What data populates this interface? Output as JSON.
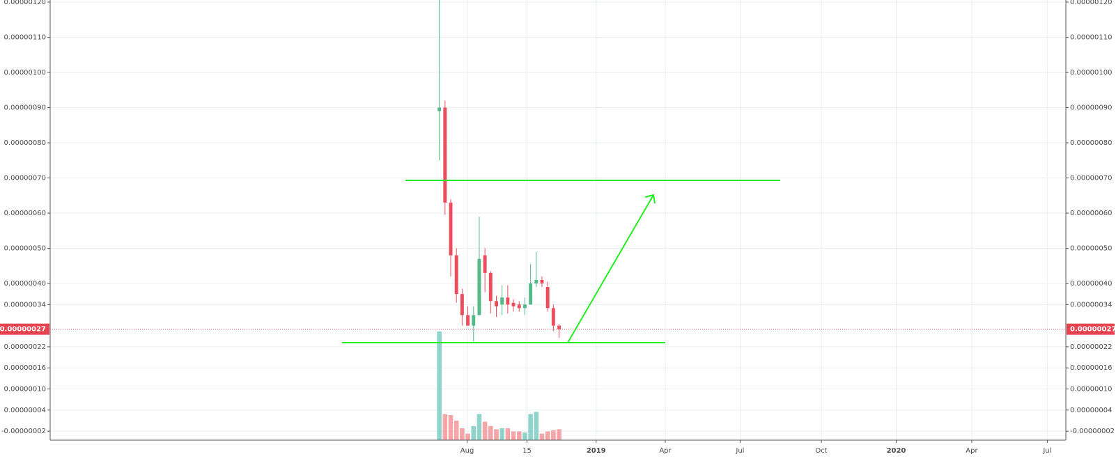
{
  "chart_data": {
    "type": "candlestick",
    "x": [
      0,
      1,
      2,
      3,
      4,
      5,
      6,
      7,
      8,
      9,
      10,
      11,
      12,
      13,
      14,
      15,
      16,
      17,
      18,
      19,
      20,
      21
    ],
    "open": [
      8.9e-07,
      9e-07,
      6.3e-07,
      4.8e-07,
      3.7e-07,
      3.1e-07,
      2.8e-07,
      3.1e-07,
      4.8e-07,
      4.3e-07,
      3.5e-07,
      3.4e-07,
      3.6e-07,
      3.45e-07,
      3.4e-07,
      3.3e-07,
      3.4e-07,
      4e-07,
      4.1e-07,
      3.9e-07,
      3.3e-07,
      2.8e-07
    ],
    "high": [
      1.22e-06,
      9.2e-07,
      6.4e-07,
      5e-07,
      3.85e-07,
      3.35e-07,
      3.35e-07,
      5.9e-07,
      5e-07,
      4.35e-07,
      3.65e-07,
      3.95e-07,
      3.95e-07,
      3.55e-07,
      3.5e-07,
      3.6e-07,
      4.55e-07,
      4.9e-07,
      4.2e-07,
      4.05e-07,
      3.4e-07,
      2.85e-07
    ],
    "low": [
      7.5e-07,
      5.95e-07,
      4.2e-07,
      3.45e-07,
      2.8e-07,
      2.8e-07,
      2.35e-07,
      3.1e-07,
      3.75e-07,
      3.15e-07,
      3.05e-07,
      3.1e-07,
      3.15e-07,
      3.2e-07,
      3.2e-07,
      3.1e-07,
      3.4e-07,
      3.9e-07,
      3.9e-07,
      3.2e-07,
      2.65e-07,
      2.45e-07
    ],
    "close": [
      9e-07,
      6.3e-07,
      4.8e-07,
      3.7e-07,
      3.1e-07,
      2.8e-07,
      3.1e-07,
      4.7e-07,
      4.3e-07,
      3.5e-07,
      3.35e-07,
      3.6e-07,
      3.4e-07,
      3.35e-07,
      3.3e-07,
      3.4e-07,
      4e-07,
      4.1e-07,
      4e-07,
      3.3e-07,
      2.8e-07,
      2.7e-07
    ],
    "volume": [
      100,
      24,
      23,
      18,
      11,
      6,
      13,
      24,
      17,
      13,
      10,
      11,
      11,
      8,
      8,
      7,
      24,
      26,
      6,
      8,
      9,
      10
    ],
    "up_color": "#53b987",
    "down_color": "#eb4d5c",
    "volume_up_color": "#8fd3ca",
    "volume_down_color": "#f4a5a7",
    "ylim": [
      -4.55e-08,
      1.206e-06
    ],
    "yticks": [
      {
        "value": 1.2e-06,
        "label": "0.00000120"
      },
      {
        "value": 1.1e-06,
        "label": "0.00000110"
      },
      {
        "value": 1e-06,
        "label": "0.00000100"
      },
      {
        "value": 9e-07,
        "label": "0.00000090"
      },
      {
        "value": 8e-07,
        "label": "0.00000080"
      },
      {
        "value": 7e-07,
        "label": "0.00000070"
      },
      {
        "value": 6e-07,
        "label": "0.00000060"
      },
      {
        "value": 5e-07,
        "label": "0.00000050"
      },
      {
        "value": 4e-07,
        "label": "0.00000040"
      },
      {
        "value": 3.4e-07,
        "label": "0.00000034"
      },
      {
        "value": 2.2e-07,
        "label": "0.00000022"
      },
      {
        "value": 1.6e-07,
        "label": "0.00000016"
      },
      {
        "value": 1e-07,
        "label": "0.00000010"
      },
      {
        "value": 4e-08,
        "label": "0.00000004"
      },
      {
        "value": -2e-08,
        "label": "-0.00000002"
      }
    ],
    "y2lim": [
      0,
      405
    ],
    "xlim": [
      -68.25,
      109.875
    ],
    "xticks": [
      {
        "value": 4.875,
        "label": "Aug"
      },
      {
        "value": 15.375,
        "label": "15"
      },
      {
        "value": 27.5,
        "label": "2019"
      },
      {
        "value": 39.625,
        "label": "Apr"
      },
      {
        "value": 52.75,
        "label": "Jul"
      },
      {
        "value": 67,
        "label": "Oct"
      },
      {
        "value": 80.125,
        "label": "2020"
      },
      {
        "value": 93.375,
        "label": "Apr"
      },
      {
        "value": 106.625,
        "label": "Jul"
      }
    ],
    "last_price": {
      "value": 2.7e-07,
      "label": "0.00000027",
      "color": "#e5434f"
    },
    "grid": true
  }
}
